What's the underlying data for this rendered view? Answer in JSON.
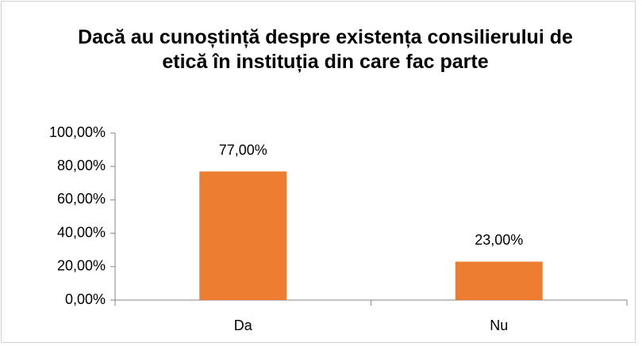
{
  "chart_data": {
    "type": "bar",
    "title": "Dacă au cunoștință despre existența consilierului de etică în instituția din care fac parte",
    "categories": [
      "Da",
      "Nu"
    ],
    "values": [
      77,
      23
    ],
    "value_labels": [
      "77,00%",
      "23,00%"
    ],
    "color": "#ed7d31",
    "ylim": [
      0,
      100
    ],
    "yticks": [
      {
        "value": 0,
        "label": "0,00%"
      },
      {
        "value": 20,
        "label": "20,00%"
      },
      {
        "value": 40,
        "label": "40,00%"
      },
      {
        "value": 60,
        "label": "60,00%"
      },
      {
        "value": 80,
        "label": "80,00%"
      },
      {
        "value": 100,
        "label": "100,00%"
      }
    ],
    "grid": false
  }
}
